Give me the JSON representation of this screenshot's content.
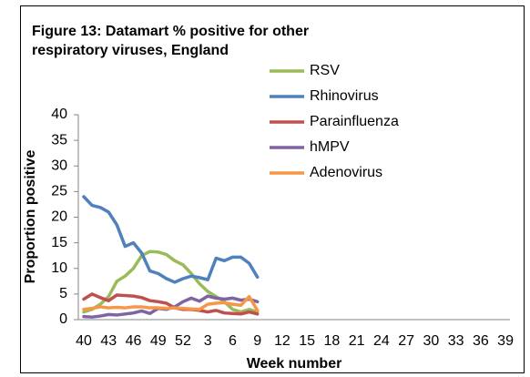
{
  "chart_data": {
    "type": "line",
    "title": [
      "Figure 13: Datamart % positive for other",
      "respiratory viruses, England"
    ],
    "x_label": "Week number",
    "y_label": "Proportion positive",
    "categories": [
      40,
      null,
      null,
      43,
      null,
      null,
      46,
      null,
      null,
      49,
      null,
      null,
      52,
      null,
      null,
      3,
      null,
      null,
      6,
      null,
      null,
      9,
      null,
      null,
      12,
      null,
      null,
      15,
      null,
      null,
      18,
      null,
      null,
      21,
      null,
      null,
      24,
      null,
      null,
      27,
      null,
      null,
      30,
      null,
      null,
      33,
      null,
      null,
      36,
      null,
      null,
      39
    ],
    "ylim": [
      0,
      40
    ],
    "yticks": [
      0,
      5,
      10,
      15,
      20,
      25,
      30,
      35,
      40
    ],
    "grid": false,
    "legend": "top-right",
    "series": [
      {
        "name": "RSV",
        "color": "#9bbb59",
        "values": [
          1.5,
          2,
          3,
          4.5,
          7.5,
          8.5,
          10,
          12.5,
          13.3,
          13.2,
          12.7,
          11.5,
          10.7,
          9,
          7,
          5.5,
          4.5,
          3.5,
          2,
          1.5,
          2,
          1.5,
          null,
          null,
          null,
          null,
          null,
          null,
          null,
          null,
          null,
          null,
          null,
          null,
          null,
          null,
          null,
          null,
          null,
          null,
          null,
          null,
          null,
          null,
          null,
          null,
          null,
          null,
          null,
          null,
          null,
          null
        ]
      },
      {
        "name": "Rhinovirus",
        "color": "#4f81bd",
        "values": [
          24,
          22.3,
          21.9,
          21,
          18.5,
          14.3,
          15,
          13,
          9.5,
          9,
          8,
          7.3,
          8,
          8.5,
          8.2,
          7.8,
          12,
          11.5,
          12.2,
          12.2,
          11,
          8.3,
          null,
          null,
          null,
          null,
          null,
          null,
          null,
          null,
          null,
          null,
          null,
          null,
          null,
          null,
          null,
          null,
          null,
          null,
          null,
          null,
          null,
          null,
          null,
          null,
          null,
          null,
          null,
          null,
          null,
          null
        ]
      },
      {
        "name": "Parainfluenza",
        "color": "#c0504d",
        "values": [
          4,
          5,
          4.3,
          3.7,
          4.8,
          4.7,
          4.6,
          4.3,
          3.7,
          3.5,
          3.2,
          2.3,
          2,
          2,
          1.8,
          1.5,
          1.8,
          1.3,
          1.2,
          1.1,
          1.5,
          1.1,
          null,
          null,
          null,
          null,
          null,
          null,
          null,
          null,
          null,
          null,
          null,
          null,
          null,
          null,
          null,
          null,
          null,
          null,
          null,
          null,
          null,
          null,
          null,
          null,
          null,
          null,
          null,
          null,
          null,
          null
        ]
      },
      {
        "name": "hMPV",
        "color": "#8064a2",
        "values": [
          0.6,
          0.5,
          0.7,
          1,
          0.9,
          1.1,
          1.3,
          1.7,
          1.2,
          2.2,
          2,
          2.5,
          3.5,
          4.2,
          3.6,
          4.6,
          4.2,
          4,
          4.2,
          3.8,
          4,
          3.5,
          null,
          null,
          null,
          null,
          null,
          null,
          null,
          null,
          null,
          null,
          null,
          null,
          null,
          null,
          null,
          null,
          null,
          null,
          null,
          null,
          null,
          null,
          null,
          null,
          null,
          null,
          null,
          null,
          null,
          null
        ]
      },
      {
        "name": "Adenovirus",
        "color": "#f79646",
        "values": [
          2,
          2.2,
          2.5,
          2.3,
          2.4,
          2.3,
          2.5,
          2.5,
          2.3,
          2.3,
          2.2,
          2.3,
          2.2,
          2.1,
          2,
          3,
          3.2,
          3.3,
          3,
          2.8,
          4.5,
          1.8,
          null,
          null,
          null,
          null,
          null,
          null,
          null,
          null,
          null,
          null,
          null,
          null,
          null,
          null,
          null,
          null,
          null,
          null,
          null,
          null,
          null,
          null,
          null,
          null,
          null,
          null,
          null,
          null,
          null,
          null
        ]
      }
    ]
  }
}
